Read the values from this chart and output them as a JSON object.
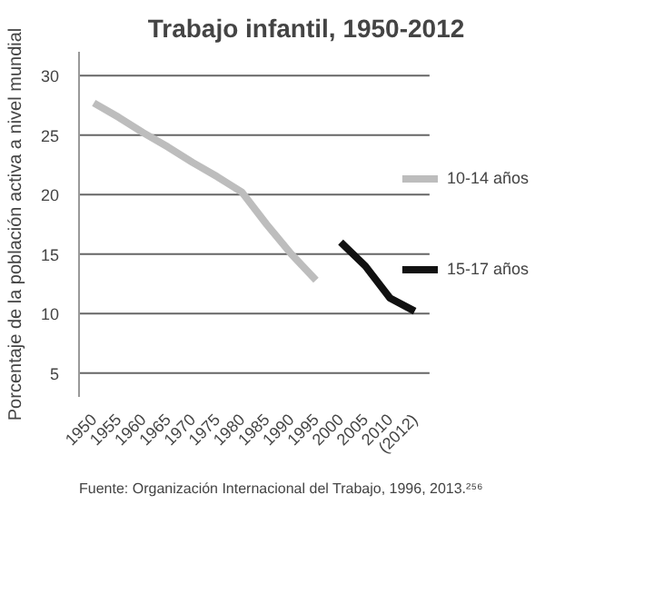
{
  "chart_data": {
    "type": "line",
    "title": "Trabajo infantil, 1950-2012",
    "ylabel": "Porcentaje de la población activa a nivel mundial",
    "categories": [
      "1950",
      "1955",
      "1960",
      "1965",
      "1970",
      "1975",
      "1980",
      "1985",
      "1990",
      "1995",
      "2000",
      "2005",
      "2010",
      "(2012)"
    ],
    "series": [
      {
        "name": "10-14 años",
        "color": "#bdbdbd",
        "values": [
          27.7,
          26.5,
          25.2,
          24.0,
          22.7,
          21.5,
          20.2,
          17.5,
          15.0,
          12.8,
          null,
          null,
          null,
          null
        ]
      },
      {
        "name": "15-17 años",
        "color": "#111111",
        "values": [
          null,
          null,
          null,
          null,
          null,
          null,
          null,
          null,
          null,
          null,
          16.0,
          14.0,
          11.3,
          10.2
        ]
      }
    ],
    "ylim": [
      3,
      32
    ],
    "yticks": [
      5,
      10,
      15,
      20,
      25,
      30
    ],
    "grid": "y",
    "legend": "right",
    "marker": "none",
    "annotations": [
      "Fuente: Organización Internacional del Trabajo, 1996, 2013.²⁵⁶"
    ]
  }
}
